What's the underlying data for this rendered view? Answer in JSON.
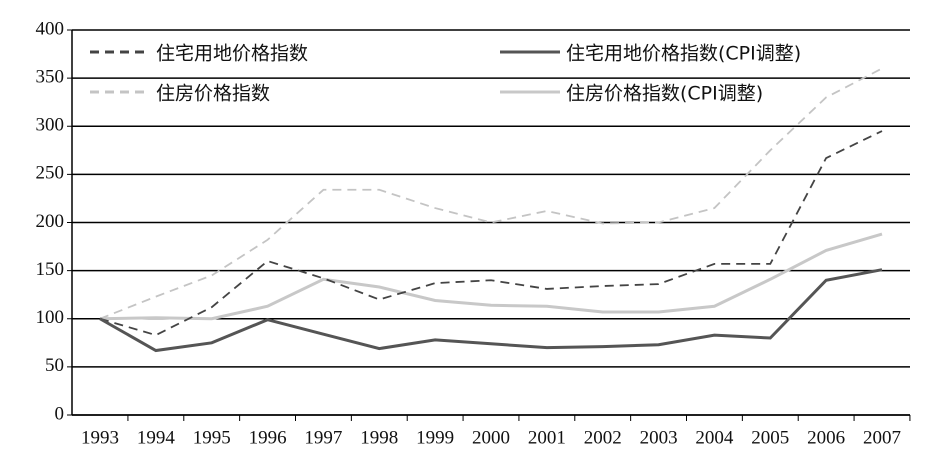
{
  "chart_data": {
    "type": "line",
    "categories": [
      "1993",
      "1994",
      "1995",
      "1996",
      "1997",
      "1998",
      "1999",
      "2000",
      "2001",
      "2002",
      "2003",
      "2004",
      "2005",
      "2006",
      "2007"
    ],
    "series": [
      {
        "name": "住宅用地价格指数",
        "color": "#444444",
        "dash": true,
        "values": [
          100,
          83,
          112,
          160,
          142,
          120,
          137,
          140,
          131,
          134,
          136,
          157,
          157,
          267,
          295
        ]
      },
      {
        "name": "住宅用地价格指数(CPI调整)",
        "color": "#555555",
        "dash": false,
        "values": [
          100,
          67,
          75,
          99,
          84,
          69,
          78,
          74,
          70,
          71,
          73,
          83,
          80,
          140,
          151
        ]
      },
      {
        "name": "住房价格指数",
        "color": "#c4c4c4",
        "dash": true,
        "values": [
          100,
          123,
          145,
          182,
          234,
          234,
          215,
          200,
          212,
          199,
          200,
          215,
          275,
          330,
          360
        ]
      },
      {
        "name": "住房价格指数(CPI调整)",
        "color": "#c8c8c8",
        "dash": false,
        "values": [
          100,
          101,
          100,
          113,
          141,
          133,
          119,
          114,
          113,
          107,
          107,
          113,
          141,
          171,
          188
        ]
      }
    ],
    "ylim": [
      0,
      400
    ],
    "yticks": [
      0,
      50,
      100,
      150,
      200,
      250,
      300,
      350,
      400
    ],
    "grid": true,
    "legend": "top"
  }
}
